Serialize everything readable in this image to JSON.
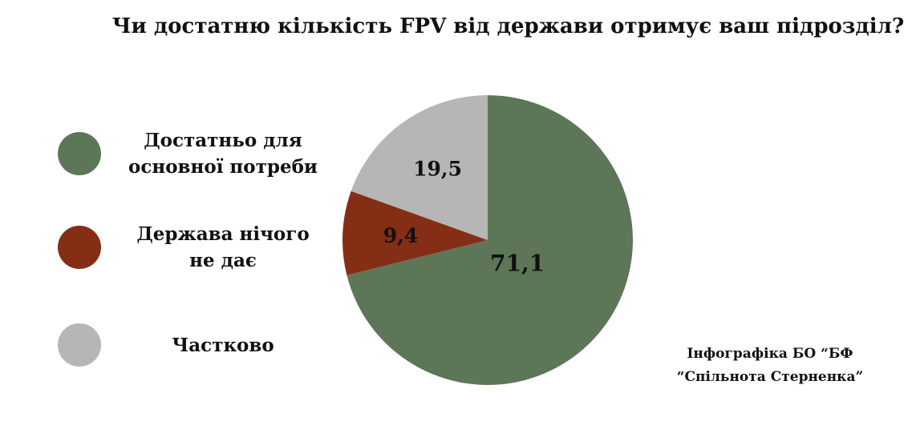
{
  "chart_data": {
    "type": "pie",
    "title": "Чи достатню кількість FPV від держави отримує ваш підрозділ?",
    "slices": [
      {
        "label": "Достатньо для\nосновної потреби",
        "value_text": "71,1",
        "value": 71.1,
        "color": "#5e7658"
      },
      {
        "label": "Держава нічого\nне дає",
        "value_text": "9,4",
        "value": 9.4,
        "color": "#852e16"
      },
      {
        "label": "Частково",
        "value_text": "19,5",
        "value": 19.5,
        "color": "#b6b6b6"
      }
    ],
    "legend_position": "left"
  },
  "credit": "Інфографіка БО “БФ\n“Спільнота Стерненка”"
}
